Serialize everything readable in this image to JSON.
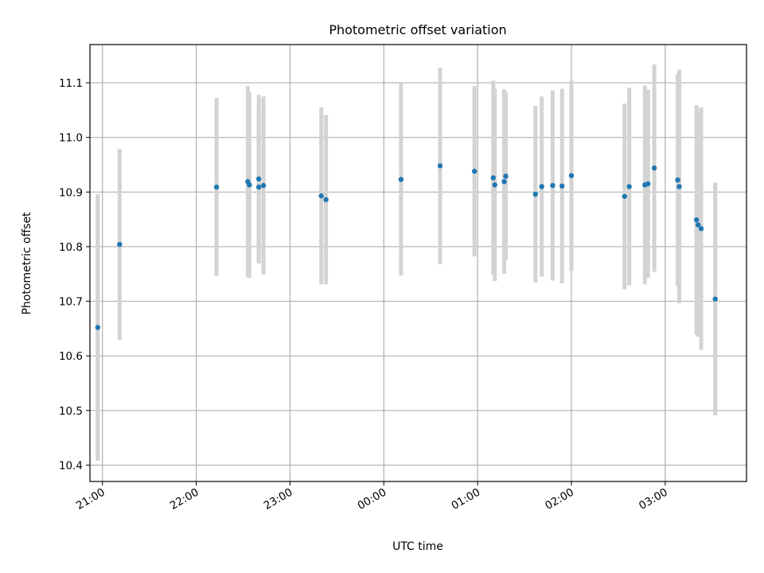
{
  "chart_data": {
    "type": "scatter",
    "title": "Photometric offset variation",
    "xlabel": "UTC time",
    "ylabel": "Photometric offset",
    "grid": true,
    "xlim": [
      "20:52",
      "03:52"
    ],
    "ylim": [
      10.37,
      11.17
    ],
    "xticks": [
      "21:00",
      "22:00",
      "23:00",
      "00:00",
      "01:00",
      "02:00",
      "03:00"
    ],
    "yticks": [
      10.4,
      10.5,
      10.6,
      10.7,
      10.8,
      10.9,
      11.0,
      11.1
    ],
    "colors": {
      "point": "#1f77b4",
      "errorbar": "#d3d3d3",
      "grid": "#b0b0b0"
    },
    "points": [
      {
        "x": "20:57",
        "y": 10.652,
        "yerr": 0.244
      },
      {
        "x": "21:11",
        "y": 10.804,
        "yerr": 0.175
      },
      {
        "x": "22:13",
        "y": 10.909,
        "yerr": 0.163
      },
      {
        "x": "22:33",
        "y": 10.919,
        "yerr": 0.175
      },
      {
        "x": "22:34",
        "y": 10.913,
        "yerr": 0.17
      },
      {
        "x": "22:40",
        "y": 10.924,
        "yerr": 0.154
      },
      {
        "x": "22:40",
        "y": 10.909,
        "yerr": 0.14
      },
      {
        "x": "22:43",
        "y": 10.912,
        "yerr": 0.163
      },
      {
        "x": "23:20",
        "y": 10.893,
        "yerr": 0.162
      },
      {
        "x": "23:23",
        "y": 10.886,
        "yerr": 0.155
      },
      {
        "x": "00:11",
        "y": 10.923,
        "yerr": 0.176
      },
      {
        "x": "00:36",
        "y": 10.948,
        "yerr": 0.18
      },
      {
        "x": "00:58",
        "y": 10.938,
        "yerr": 0.156
      },
      {
        "x": "01:10",
        "y": 10.926,
        "yerr": 0.178
      },
      {
        "x": "01:11",
        "y": 10.913,
        "yerr": 0.176
      },
      {
        "x": "01:17",
        "y": 10.919,
        "yerr": 0.169
      },
      {
        "x": "01:18",
        "y": 10.929,
        "yerr": 0.154
      },
      {
        "x": "01:37",
        "y": 10.896,
        "yerr": 0.162
      },
      {
        "x": "01:41",
        "y": 10.91,
        "yerr": 0.165
      },
      {
        "x": "01:48",
        "y": 10.912,
        "yerr": 0.174
      },
      {
        "x": "01:54",
        "y": 10.911,
        "yerr": 0.178
      },
      {
        "x": "02:00",
        "y": 10.93,
        "yerr": 0.174
      },
      {
        "x": "02:34",
        "y": 10.892,
        "yerr": 0.17
      },
      {
        "x": "02:37",
        "y": 10.91,
        "yerr": 0.181
      },
      {
        "x": "02:47",
        "y": 10.913,
        "yerr": 0.182
      },
      {
        "x": "02:49",
        "y": 10.915,
        "yerr": 0.172
      },
      {
        "x": "02:53",
        "y": 10.944,
        "yerr": 0.19
      },
      {
        "x": "03:08",
        "y": 10.922,
        "yerr": 0.194
      },
      {
        "x": "03:09",
        "y": 10.91,
        "yerr": 0.214
      },
      {
        "x": "03:20",
        "y": 10.849,
        "yerr": 0.21
      },
      {
        "x": "03:21",
        "y": 10.84,
        "yerr": 0.205
      },
      {
        "x": "03:23",
        "y": 10.833,
        "yerr": 0.222
      },
      {
        "x": "03:32",
        "y": 10.704,
        "yerr": 0.213
      }
    ]
  }
}
